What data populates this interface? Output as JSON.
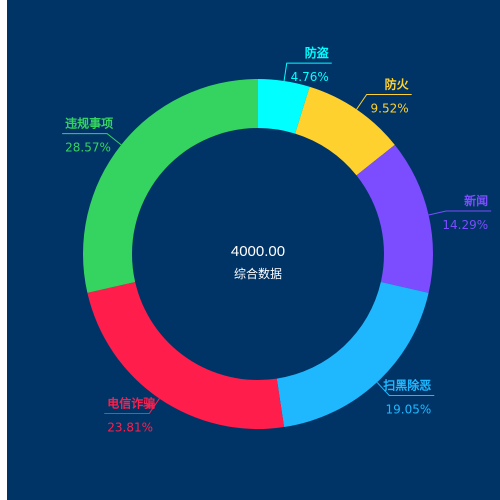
{
  "chart_data": {
    "type": "pie",
    "donut": true,
    "center": {
      "value": "4000.00",
      "label": "综合数据"
    },
    "slices": [
      {
        "name": "防盗",
        "percent_label": "4.76%",
        "value": 4.76,
        "color": "#00ffff"
      },
      {
        "name": "防火",
        "percent_label": "9.52%",
        "value": 9.52,
        "color": "#ffd12f"
      },
      {
        "name": "新闻",
        "percent_label": "14.29%",
        "value": 14.29,
        "color": "#7b4dff"
      },
      {
        "name": "扫黑除恶",
        "percent_label": "19.05%",
        "value": 19.05,
        "color": "#1fb8ff"
      },
      {
        "name": "电信诈骗",
        "percent_label": "23.81%",
        "value": 23.81,
        "color": "#ff1e4b"
      },
      {
        "name": "违规事项",
        "percent_label": "28.57%",
        "value": 28.57,
        "color": "#35d35f"
      }
    ],
    "legend": "none"
  },
  "colors": {
    "background": "#003466"
  }
}
